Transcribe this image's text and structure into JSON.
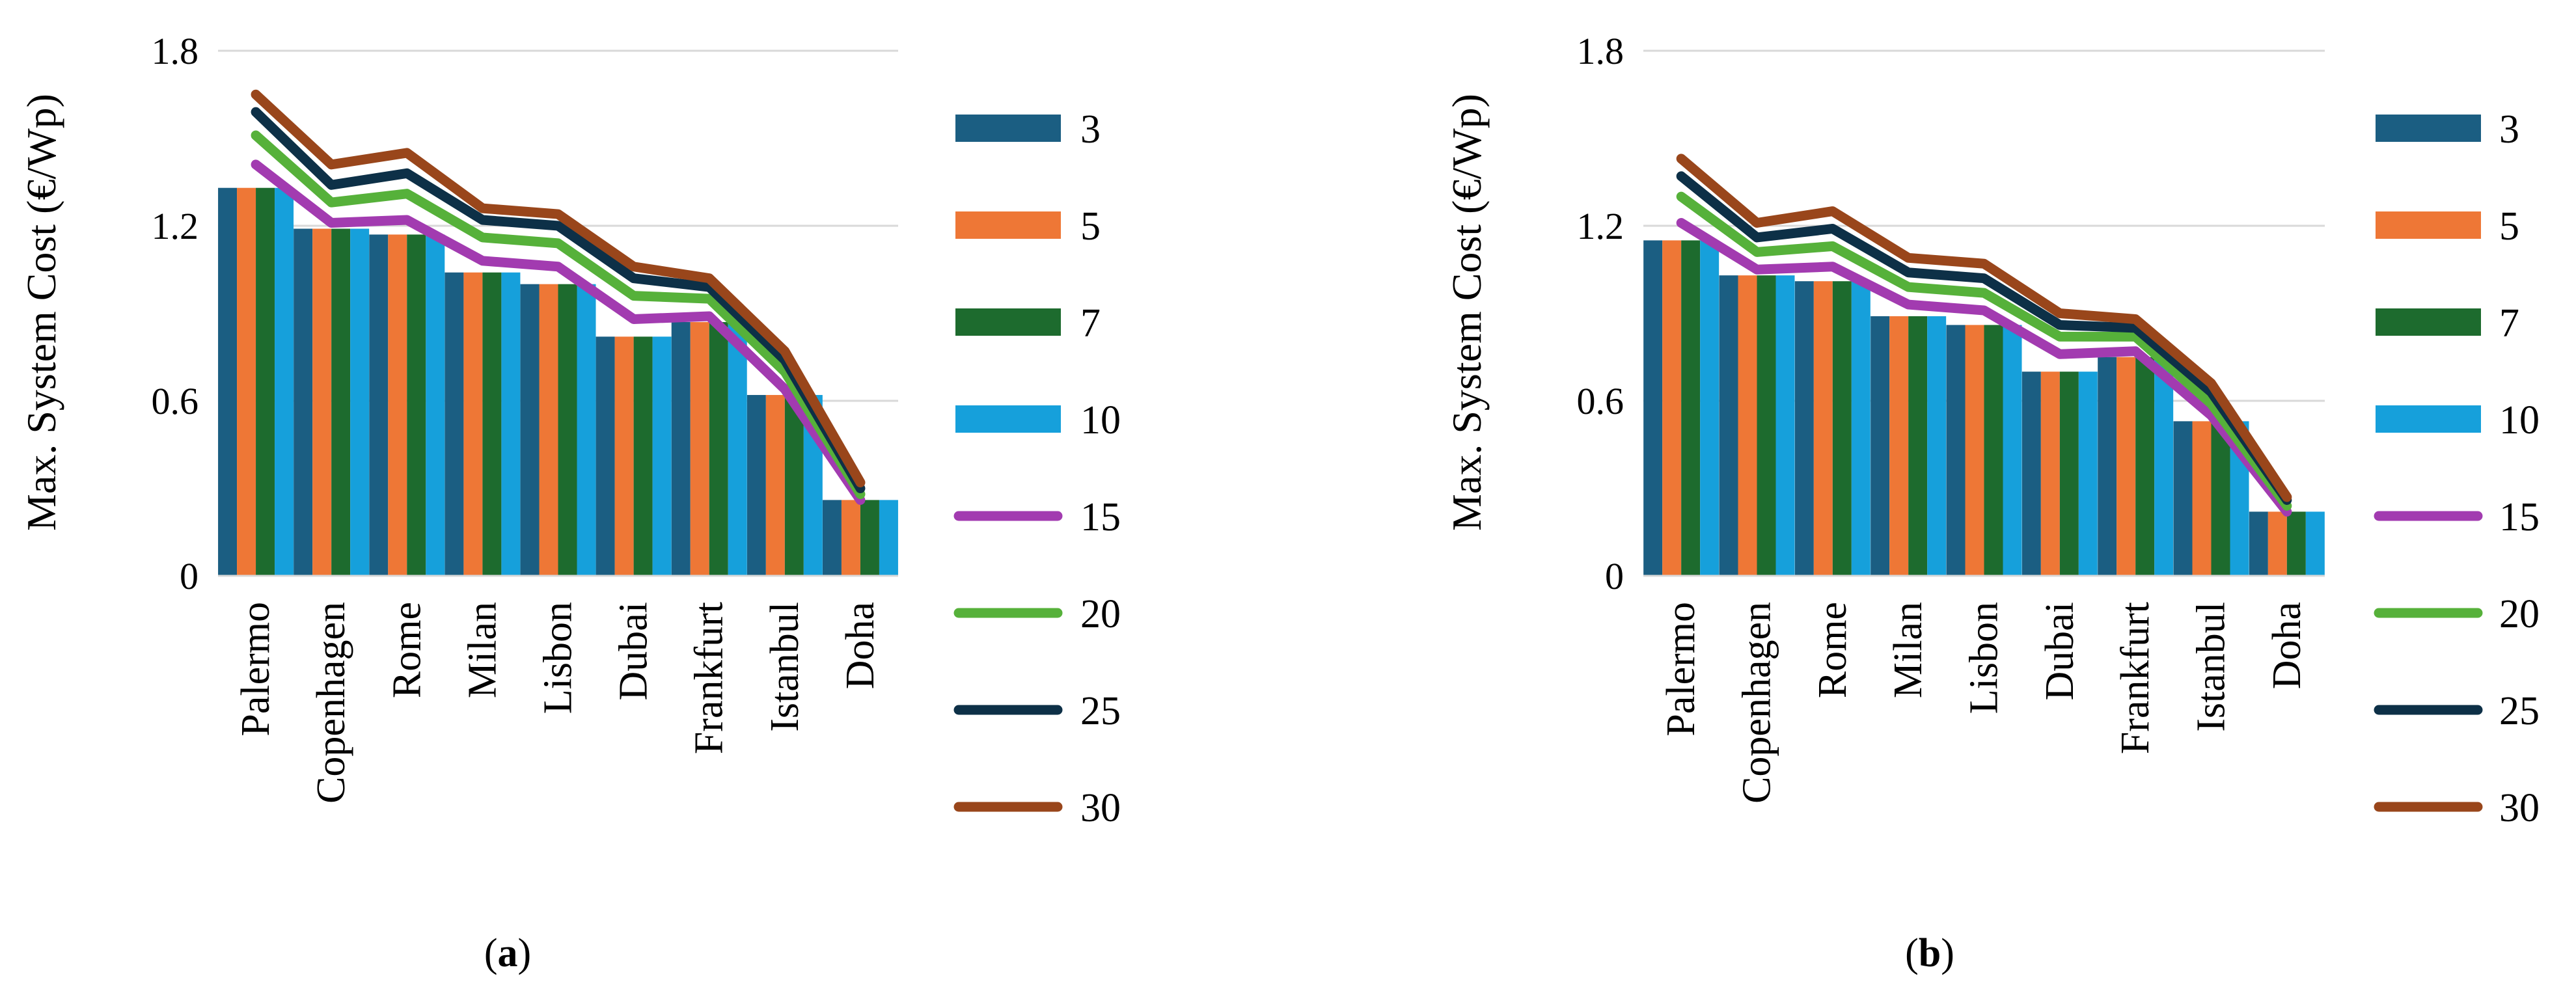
{
  "colors": {
    "3": "#1b5e82",
    "5": "#ee7736",
    "7": "#1d6b2e",
    "10": "#16a0db",
    "15": "#a23bb0",
    "20": "#56b13a",
    "25": "#0d3047",
    "30": "#99461b",
    "grid": "#d9d9d9"
  },
  "chart_data": [
    {
      "type": "bar",
      "panel_label": "a",
      "ylabel": "Max. System Cost (€/Wp)",
      "ylim": [
        0,
        1.8
      ],
      "yticks": [
        "0",
        "0.6",
        "1.2",
        "1.8"
      ],
      "categories": [
        "Palermo",
        "Copenhagen",
        "Rome",
        "Milan",
        "Lisbon",
        "Dubai",
        "Frankfurt",
        "Istanbul",
        "Doha"
      ],
      "bar_series": [
        {
          "name": "3",
          "values": [
            1.33,
            1.19,
            1.17,
            1.04,
            1.0,
            0.82,
            0.87,
            0.62,
            0.26
          ]
        },
        {
          "name": "5",
          "values": [
            1.33,
            1.19,
            1.17,
            1.04,
            1.0,
            0.82,
            0.87,
            0.62,
            0.26
          ]
        },
        {
          "name": "7",
          "values": [
            1.33,
            1.19,
            1.17,
            1.04,
            1.0,
            0.82,
            0.87,
            0.62,
            0.26
          ]
        },
        {
          "name": "10",
          "values": [
            1.33,
            1.19,
            1.17,
            1.04,
            1.0,
            0.82,
            0.87,
            0.62,
            0.26
          ]
        }
      ],
      "line_series": [
        {
          "name": "15",
          "values": [
            1.41,
            1.21,
            1.22,
            1.08,
            1.06,
            0.88,
            0.89,
            0.64,
            0.26
          ]
        },
        {
          "name": "20",
          "values": [
            1.51,
            1.28,
            1.31,
            1.16,
            1.14,
            0.96,
            0.95,
            0.7,
            0.28
          ]
        },
        {
          "name": "25",
          "values": [
            1.59,
            1.34,
            1.38,
            1.22,
            1.2,
            1.02,
            0.99,
            0.74,
            0.3
          ]
        },
        {
          "name": "30",
          "values": [
            1.65,
            1.41,
            1.45,
            1.26,
            1.24,
            1.06,
            1.02,
            0.77,
            0.32
          ]
        }
      ],
      "legend": [
        "3",
        "5",
        "7",
        "10",
        "15",
        "20",
        "25",
        "30"
      ]
    },
    {
      "type": "bar",
      "panel_label": "b",
      "ylabel": "Max. System Cost (€/Wp)",
      "ylim": [
        0,
        1.8
      ],
      "yticks": [
        "0",
        "0.6",
        "1.2",
        "1.8"
      ],
      "categories": [
        "Palermo",
        "Copenhagen",
        "Rome",
        "Milan",
        "Lisbon",
        "Dubai",
        "Frankfurt",
        "Istanbul",
        "Doha"
      ],
      "bar_series": [
        {
          "name": "3",
          "values": [
            1.15,
            1.03,
            1.01,
            0.89,
            0.86,
            0.7,
            0.75,
            0.53,
            0.22
          ]
        },
        {
          "name": "5",
          "values": [
            1.15,
            1.03,
            1.01,
            0.89,
            0.86,
            0.7,
            0.75,
            0.53,
            0.22
          ]
        },
        {
          "name": "7",
          "values": [
            1.15,
            1.03,
            1.01,
            0.89,
            0.86,
            0.7,
            0.75,
            0.53,
            0.22
          ]
        },
        {
          "name": "10",
          "values": [
            1.15,
            1.03,
            1.01,
            0.89,
            0.86,
            0.7,
            0.75,
            0.53,
            0.22
          ]
        }
      ],
      "line_series": [
        {
          "name": "15",
          "values": [
            1.21,
            1.05,
            1.06,
            0.93,
            0.91,
            0.76,
            0.77,
            0.55,
            0.22
          ]
        },
        {
          "name": "20",
          "values": [
            1.3,
            1.11,
            1.13,
            0.99,
            0.97,
            0.82,
            0.82,
            0.59,
            0.24
          ]
        },
        {
          "name": "25",
          "values": [
            1.37,
            1.16,
            1.19,
            1.04,
            1.02,
            0.86,
            0.85,
            0.63,
            0.26
          ]
        },
        {
          "name": "30",
          "values": [
            1.43,
            1.21,
            1.25,
            1.09,
            1.07,
            0.9,
            0.88,
            0.66,
            0.27
          ]
        }
      ],
      "legend": [
        "3",
        "5",
        "7",
        "10",
        "15",
        "20",
        "25",
        "30"
      ]
    }
  ],
  "captions": [
    {
      "open": "(",
      "label": "a",
      "close": ")"
    },
    {
      "open": "(",
      "label": "b",
      "close": ")"
    }
  ]
}
